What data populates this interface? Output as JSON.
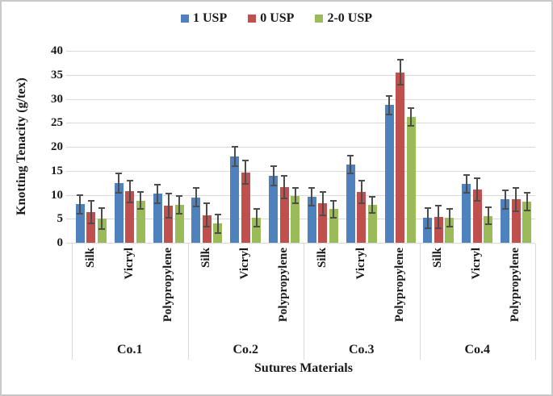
{
  "figure": {
    "background": "#ffffff",
    "border_color": "#c9c9c9",
    "gridline_color": "#d9d9d9",
    "error_bar_color": "#4d4d4d",
    "text_color": "#1a1a1a"
  },
  "legend": {
    "position": "top-center",
    "items": [
      {
        "label": "1 USP",
        "color": "#4F81BD"
      },
      {
        "label": "0 USP",
        "color": "#C0504D"
      },
      {
        "label": "2-0 USP",
        "color": "#9BBB59"
      }
    ]
  },
  "chart_data": {
    "type": "bar",
    "title": "",
    "xlabel": "Sutures Materials",
    "ylabel": "Knotting Tenacity (g/tex)",
    "ylim": [
      0,
      40
    ],
    "yticks": [
      0,
      5,
      10,
      15,
      20,
      25,
      30,
      35,
      40
    ],
    "grid": true,
    "legend_position": "top-center",
    "groups": [
      "Co.1",
      "Co.2",
      "Co.3",
      "Co.4"
    ],
    "categories": [
      "Silk",
      "Vicryl",
      "Polypropylene"
    ],
    "series": [
      {
        "name": "1 USP",
        "color": "#4F81BD",
        "values": [
          [
            8.0,
            12.5,
            10.2
          ],
          [
            9.5,
            18.0,
            13.9
          ],
          [
            9.6,
            16.3,
            28.7
          ],
          [
            5.2,
            12.3,
            9.0
          ]
        ],
        "errors": [
          [
            2.0,
            2.0,
            1.9
          ],
          [
            2.0,
            2.0,
            2.0
          ],
          [
            1.9,
            1.9,
            1.9
          ],
          [
            2.1,
            1.9,
            2.0
          ]
        ]
      },
      {
        "name": "0 USP",
        "color": "#C0504D",
        "values": [
          [
            6.4,
            10.7,
            7.8
          ],
          [
            5.8,
            14.7,
            11.6
          ],
          [
            8.2,
            10.6,
            35.5
          ],
          [
            5.4,
            11.1,
            9.0
          ]
        ],
        "errors": [
          [
            2.4,
            2.3,
            2.5
          ],
          [
            2.5,
            2.4,
            2.3
          ],
          [
            2.4,
            2.3,
            2.6
          ],
          [
            2.3,
            2.3,
            2.4
          ]
        ]
      },
      {
        "name": "2-0 USP",
        "color": "#9BBB59",
        "values": [
          [
            5.0,
            8.8,
            7.9
          ],
          [
            4.0,
            5.2,
            9.8
          ],
          [
            7.0,
            7.9,
            26.2
          ],
          [
            5.2,
            5.6,
            8.6
          ]
        ],
        "errors": [
          [
            2.2,
            1.8,
            1.8
          ],
          [
            1.9,
            1.9,
            1.6
          ],
          [
            1.8,
            1.7,
            1.9
          ],
          [
            1.9,
            1.8,
            1.9
          ]
        ]
      }
    ]
  }
}
